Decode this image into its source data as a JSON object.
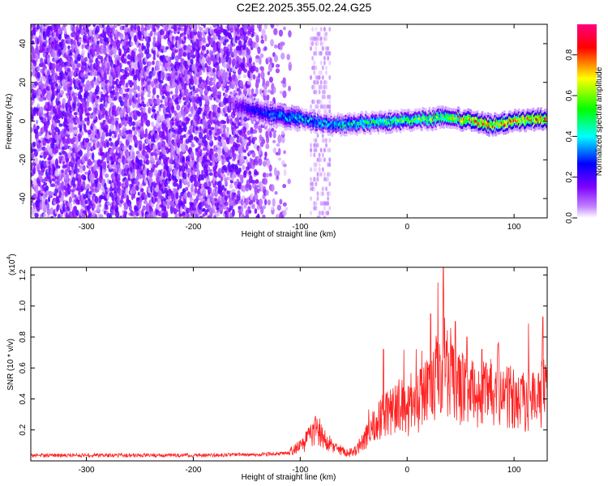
{
  "title": "C2E2.2025.355.02.24.G25",
  "chart_data": [
    {
      "type": "heatmap",
      "name": "spectrogram",
      "xlabel": "Height of straight line (km)",
      "ylabel": "Frequency (Hz)",
      "xlim": [
        -352,
        131
      ],
      "ylim": [
        -50,
        50
      ],
      "xticks": [
        -300,
        -200,
        -100,
        0,
        100
      ],
      "xtick_labels": [
        "-300",
        "-200",
        "-100",
        "0",
        "100"
      ],
      "yticks": [
        -40,
        -20,
        0,
        20,
        40
      ],
      "ytick_labels": [
        "-40",
        "-20",
        "0",
        "20",
        "40"
      ],
      "colorbar": {
        "label": "Normalized spectral amplitude",
        "range": [
          0,
          0.95
        ],
        "ticks": [
          0.0,
          0.2,
          0.4,
          0.6,
          0.8
        ],
        "tick_labels": [
          "0.0",
          "0.2",
          "0.4",
          "0.6",
          "0.8"
        ],
        "colormap": [
          "#ffffff",
          "#7f00ff",
          "#0000ff",
          "#00ffff",
          "#00ff00",
          "#ffff00",
          "#ff0000",
          "#ff0080"
        ]
      },
      "regions": [
        {
          "name": "noise-background",
          "x_range": [
            -352,
            -120
          ],
          "freq_range": [
            -50,
            50
          ],
          "amplitude": 0.08
        },
        {
          "name": "weak-band",
          "x_range": [
            -90,
            -72
          ],
          "freq_range": [
            -50,
            50
          ],
          "amplitude": 0.04
        },
        {
          "name": "signal-ridge",
          "x_range": [
            -160,
            131
          ],
          "freq_center": 0,
          "amplitude": 0.6
        }
      ],
      "ridge": {
        "x": [
          -160,
          -130,
          -100,
          -70,
          -40,
          -10,
          20,
          40,
          60,
          80,
          100,
          131
        ],
        "freq": [
          8,
          4,
          1,
          -2,
          -1,
          0,
          1,
          2,
          0,
          -2,
          0,
          1
        ],
        "amplitude": [
          0.2,
          0.35,
          0.45,
          0.45,
          0.55,
          0.6,
          0.65,
          0.7,
          0.85,
          0.9,
          0.9,
          0.85
        ]
      }
    },
    {
      "type": "line",
      "name": "snr",
      "xlabel": "Height of straight line (km)",
      "ylabel": "SNR (10 * v/v)",
      "multiplier_label": "(x10",
      "multiplier_exponent": "4",
      "xlim": [
        -352,
        131
      ],
      "ylim": [
        0,
        1.25
      ],
      "xticks": [
        -300,
        -200,
        -100,
        0,
        100
      ],
      "xtick_labels": [
        "-300",
        "-200",
        "-100",
        "0",
        "100"
      ],
      "yticks": [
        0.2,
        0.4,
        0.6,
        0.8,
        1.0,
        1.2
      ],
      "ytick_labels": [
        "0.2",
        "0.4",
        "0.6",
        "0.8",
        "1.0",
        "1.2"
      ],
      "series_color": "#ff2020",
      "envelope": {
        "x": [
          -352,
          -200,
          -140,
          -110,
          -100,
          -90,
          -85,
          -80,
          -75,
          -65,
          -55,
          -48,
          -40,
          -30,
          -20,
          -10,
          0,
          10,
          20,
          30,
          35,
          40,
          50,
          60,
          70,
          80,
          90,
          100,
          110,
          120,
          131
        ],
        "y": [
          0.035,
          0.035,
          0.04,
          0.05,
          0.09,
          0.15,
          0.19,
          0.16,
          0.12,
          0.07,
          0.05,
          0.06,
          0.13,
          0.23,
          0.3,
          0.34,
          0.3,
          0.35,
          0.45,
          0.55,
          0.6,
          0.5,
          0.45,
          0.42,
          0.4,
          0.42,
          0.4,
          0.38,
          0.37,
          0.38,
          0.45
        ]
      },
      "peaks": [
        {
          "x": -22,
          "y": 0.72
        },
        {
          "x": 22,
          "y": 0.95
        },
        {
          "x": 34,
          "y": 1.25
        },
        {
          "x": 45,
          "y": 0.9
        },
        {
          "x": 56,
          "y": 0.8
        },
        {
          "x": 70,
          "y": 0.72
        },
        {
          "x": 95,
          "y": 0.6
        },
        {
          "x": 127,
          "y": 0.93
        }
      ]
    }
  ]
}
